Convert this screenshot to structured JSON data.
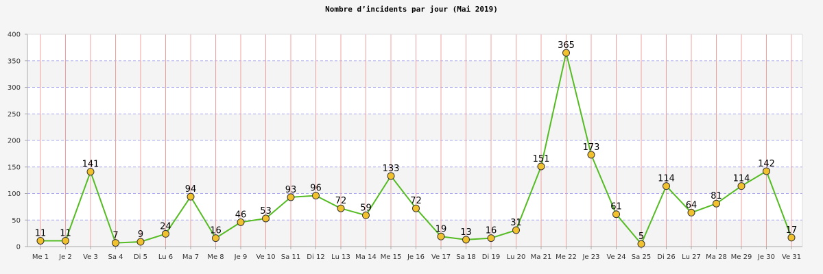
{
  "chart_data": {
    "type": "line",
    "title": "Nombre d’incidents par jour (Mai 2019)",
    "xlabel": "",
    "ylabel": "",
    "ylim": [
      0,
      400
    ],
    "yticks": [
      0,
      50,
      100,
      150,
      200,
      250,
      300,
      350,
      400
    ],
    "categories": [
      "Me 1",
      "Je 2",
      "Ve 3",
      "Sa 4",
      "Di 5",
      "Lu 6",
      "Ma 7",
      "Me 8",
      "Je 9",
      "Ve 10",
      "Sa 11",
      "Di 12",
      "Lu 13",
      "Ma 14",
      "Me 15",
      "Je 16",
      "Ve 17",
      "Sa 18",
      "Di 19",
      "Lu 20",
      "Ma 21",
      "Me 22",
      "Je 23",
      "Ve 24",
      "Sa 25",
      "Di 26",
      "Lu 27",
      "Ma 28",
      "Me 29",
      "Je 30",
      "Ve 31"
    ],
    "values": [
      11,
      11,
      141,
      7,
      9,
      24,
      94,
      16,
      46,
      53,
      93,
      96,
      72,
      59,
      133,
      72,
      19,
      13,
      16,
      31,
      151,
      365,
      173,
      61,
      5,
      114,
      64,
      81,
      114,
      142,
      17
    ],
    "grid": true,
    "colors": {
      "line": "#55bb22",
      "marker_fill": "#f2c12e",
      "marker_stroke": "#333333",
      "band": "#f4f4f4",
      "plot_bg": "#ffffff",
      "hgrid": "#aaaaee",
      "vgrid": "#f0a0a0"
    }
  }
}
